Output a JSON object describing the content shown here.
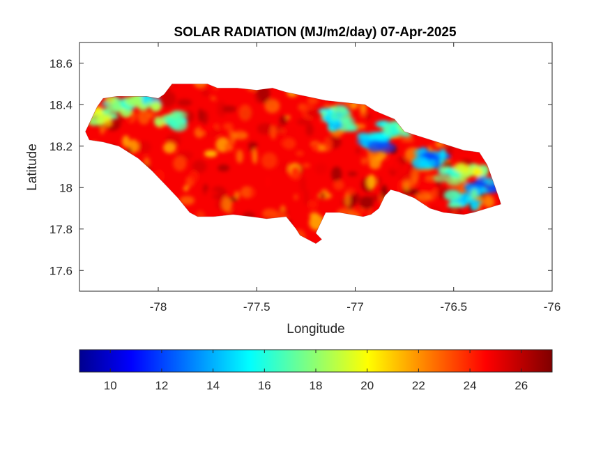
{
  "figure": {
    "title": "SOLAR RADIATION (MJ/m2/day) 07-Apr-2025",
    "xlabel": "Longitude",
    "ylabel": "Latitude",
    "xlim": [
      -78.4,
      -76.0
    ],
    "ylim": [
      17.5,
      18.7
    ],
    "xticks": [
      -78,
      -77.5,
      -77,
      -76.5,
      -76
    ],
    "xtick_labels": [
      "-78",
      "-77.5",
      "-77",
      "-76.5",
      "-76"
    ],
    "yticks": [
      17.6,
      17.8,
      18.0,
      18.2,
      18.4,
      18.6
    ],
    "ytick_labels": [
      "17.6",
      "17.8",
      "18",
      "18.2",
      "18.4",
      "18.6"
    ]
  },
  "colorbar": {
    "colormap": "jet",
    "range": [
      8.8,
      27.2
    ],
    "ticks": [
      10,
      12,
      14,
      16,
      18,
      20,
      22,
      24,
      26
    ],
    "tick_labels": [
      "10",
      "12",
      "14",
      "16",
      "18",
      "20",
      "22",
      "24",
      "26"
    ],
    "orientation": "horizontal",
    "placement": "bottom"
  },
  "chart_data": {
    "type": "heatmap",
    "region": "Jamaica",
    "variable": "Solar radiation",
    "units": "MJ/m2/day",
    "date": "07-Apr-2025",
    "value_range": [
      8.8,
      27.2
    ],
    "background_value": 25,
    "outline": [
      [
        -78.37,
        18.27
      ],
      [
        -78.34,
        18.33
      ],
      [
        -78.31,
        18.39
      ],
      [
        -78.28,
        18.43
      ],
      [
        -78.21,
        18.44
      ],
      [
        -78.12,
        18.44
      ],
      [
        -78.06,
        18.44
      ],
      [
        -78.0,
        18.43
      ],
      [
        -77.97,
        18.45
      ],
      [
        -77.93,
        18.5
      ],
      [
        -77.85,
        18.5
      ],
      [
        -77.75,
        18.5
      ],
      [
        -77.7,
        18.48
      ],
      [
        -77.6,
        18.48
      ],
      [
        -77.5,
        18.47
      ],
      [
        -77.42,
        18.48
      ],
      [
        -77.35,
        18.46
      ],
      [
        -77.25,
        18.44
      ],
      [
        -77.15,
        18.42
      ],
      [
        -77.05,
        18.41
      ],
      [
        -76.95,
        18.4
      ],
      [
        -76.9,
        18.37
      ],
      [
        -76.8,
        18.33
      ],
      [
        -76.75,
        18.27
      ],
      [
        -76.65,
        18.24
      ],
      [
        -76.55,
        18.21
      ],
      [
        -76.45,
        18.18
      ],
      [
        -76.37,
        18.17
      ],
      [
        -76.33,
        18.11
      ],
      [
        -76.3,
        18.03
      ],
      [
        -76.27,
        17.95
      ],
      [
        -76.26,
        17.92
      ],
      [
        -76.33,
        17.9
      ],
      [
        -76.4,
        17.88
      ],
      [
        -76.45,
        17.87
      ],
      [
        -76.55,
        17.88
      ],
      [
        -76.62,
        17.9
      ],
      [
        -76.7,
        17.95
      ],
      [
        -76.78,
        17.98
      ],
      [
        -76.82,
        17.99
      ],
      [
        -76.85,
        17.96
      ],
      [
        -76.88,
        17.9
      ],
      [
        -76.92,
        17.87
      ],
      [
        -76.96,
        17.86
      ],
      [
        -77.02,
        17.87
      ],
      [
        -77.08,
        17.88
      ],
      [
        -77.15,
        17.88
      ],
      [
        -77.18,
        17.82
      ],
      [
        -77.2,
        17.78
      ],
      [
        -77.17,
        17.75
      ],
      [
        -77.2,
        17.73
      ],
      [
        -77.24,
        17.75
      ],
      [
        -77.28,
        17.77
      ],
      [
        -77.3,
        17.8
      ],
      [
        -77.35,
        17.86
      ],
      [
        -77.45,
        17.85
      ],
      [
        -77.53,
        17.86
      ],
      [
        -77.62,
        17.87
      ],
      [
        -77.72,
        17.86
      ],
      [
        -77.8,
        17.86
      ],
      [
        -77.84,
        17.88
      ],
      [
        -77.9,
        17.95
      ],
      [
        -77.97,
        18.02
      ],
      [
        -78.03,
        18.08
      ],
      [
        -78.1,
        18.14
      ],
      [
        -78.2,
        18.2
      ],
      [
        -78.28,
        18.22
      ],
      [
        -78.35,
        18.23
      ]
    ],
    "low_value_zones": [
      {
        "lon": -77.05,
        "lat": 18.3,
        "value": 14
      },
      {
        "lon": -76.9,
        "lat": 18.22,
        "value": 12
      },
      {
        "lon": -76.8,
        "lat": 18.28,
        "value": 15
      },
      {
        "lon": -77.1,
        "lat": 18.35,
        "value": 15
      },
      {
        "lon": -76.6,
        "lat": 18.14,
        "value": 12
      },
      {
        "lon": -76.52,
        "lat": 18.06,
        "value": 15
      },
      {
        "lon": -76.4,
        "lat": 18.07,
        "value": 17
      },
      {
        "lon": -76.35,
        "lat": 18.0,
        "value": 12
      },
      {
        "lon": -76.45,
        "lat": 17.94,
        "value": 14
      },
      {
        "lon": -78.2,
        "lat": 18.4,
        "value": 16
      },
      {
        "lon": -78.07,
        "lat": 18.42,
        "value": 15
      },
      {
        "lon": -77.95,
        "lat": 18.33,
        "value": 16
      },
      {
        "lon": -78.3,
        "lat": 18.34,
        "value": 17
      }
    ]
  }
}
